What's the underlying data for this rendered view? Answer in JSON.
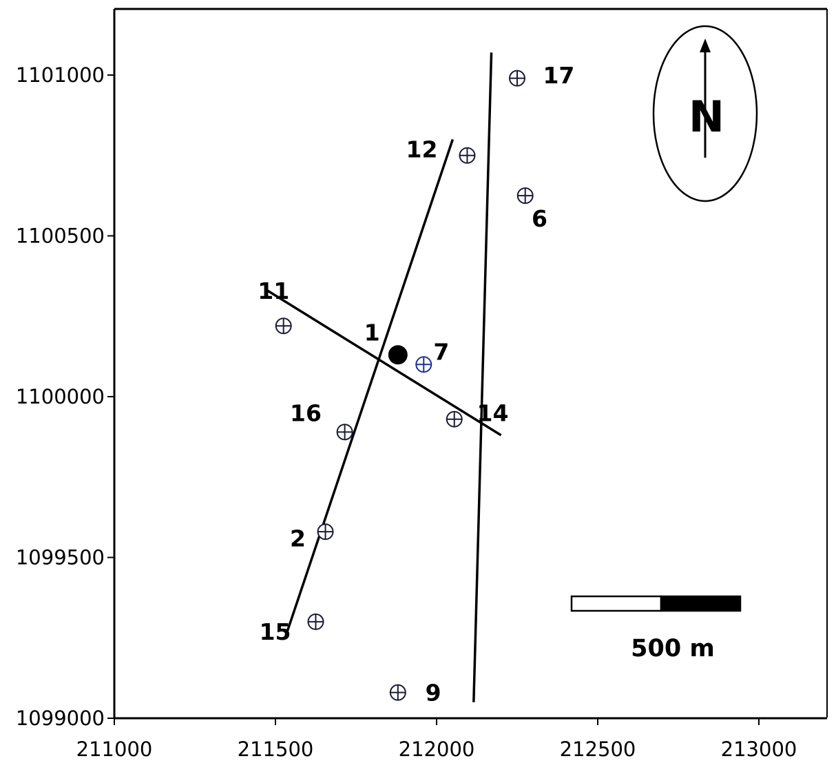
{
  "chart_data": {
    "type": "scatter",
    "title": "",
    "xlabel": "",
    "ylabel": "",
    "xlim": [
      211000,
      213200
    ],
    "ylim": [
      1099000,
      1101200
    ],
    "x_ticks": [
      211000,
      211500,
      212000,
      212500,
      213000
    ],
    "x_tick_labels": [
      "211000",
      "211500",
      "212000",
      "212500",
      "213000"
    ],
    "y_ticks": [
      1099000,
      1099500,
      1100000,
      1100500,
      1101000
    ],
    "y_tick_labels": [
      "1099000",
      "1099500",
      "1100000",
      "1100500",
      "1101000"
    ],
    "grid": false,
    "stations": [
      {
        "id": "17",
        "x": 212250,
        "y": 1100990,
        "marker": "crosshair-circle",
        "color": "#1a1a3a"
      },
      {
        "id": "12",
        "x": 212095,
        "y": 1100750,
        "marker": "crosshair-circle",
        "color": "#1a1a3a"
      },
      {
        "id": "6",
        "x": 212275,
        "y": 1100625,
        "marker": "crosshair-circle",
        "color": "#1a1a3a"
      },
      {
        "id": "",
        "x": 211525,
        "y": 1100220,
        "marker": "crosshair-circle",
        "color": "#1a1a3a"
      },
      {
        "id": "7",
        "x": 211960,
        "y": 1100100,
        "marker": "crosshair-circle",
        "color": "#1f2f8f"
      },
      {
        "id": "1",
        "x": 211880,
        "y": 1100130,
        "marker": "filled-circle",
        "color": "#000000"
      },
      {
        "id": "14",
        "x": 212055,
        "y": 1099930,
        "marker": "crosshair-circle",
        "color": "#1a1a3a"
      },
      {
        "id": "16",
        "x": 211715,
        "y": 1099890,
        "marker": "crosshair-circle",
        "color": "#1a1a3a"
      },
      {
        "id": "2",
        "x": 211655,
        "y": 1099580,
        "marker": "crosshair-circle",
        "color": "#1a1a3a"
      },
      {
        "id": "15",
        "x": 211625,
        "y": 1099300,
        "marker": "crosshair-circle",
        "color": "#1a1a3a"
      },
      {
        "id": "9",
        "x": 211880,
        "y": 1099080,
        "marker": "crosshair-circle",
        "color": "#1a1a3a"
      }
    ],
    "labels": [
      {
        "text": "17",
        "x": 212330,
        "y": 1101000
      },
      {
        "text": "12",
        "x": 211905,
        "y": 1100770
      },
      {
        "text": "6",
        "x": 212295,
        "y": 1100555
      },
      {
        "text": "11",
        "x": 211445,
        "y": 1100330
      },
      {
        "text": "1",
        "x": 211775,
        "y": 1100200
      },
      {
        "text": "7",
        "x": 211990,
        "y": 1100140
      },
      {
        "text": "16",
        "x": 211545,
        "y": 1099950
      },
      {
        "text": "14",
        "x": 212125,
        "y": 1099950
      },
      {
        "text": "2",
        "x": 211545,
        "y": 1099560
      },
      {
        "text": "15",
        "x": 211450,
        "y": 1099270
      },
      {
        "text": "9",
        "x": 211965,
        "y": 1099080
      }
    ],
    "profile_lines": [
      {
        "from": [
          211530,
          1099250
        ],
        "to": [
          212050,
          1100800
        ]
      },
      {
        "from": [
          211475,
          1100330
        ],
        "to": [
          212200,
          1099880
        ]
      },
      {
        "from": [
          212115,
          1099050
        ],
        "to": [
          212170,
          1101070
        ]
      }
    ],
    "north_arrow": {
      "letter": "N",
      "placement": "top-right"
    },
    "scale_bar": {
      "label": "500 m",
      "placement": "bottom-right"
    }
  }
}
